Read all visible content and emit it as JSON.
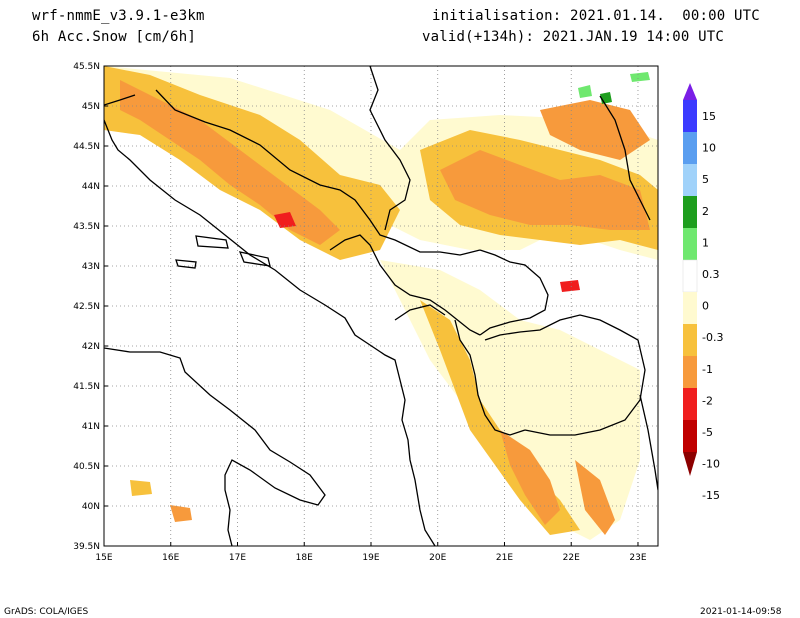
{
  "header": {
    "model": "wrf-nmmE_v3.9.1-e3km",
    "field": "6h Acc.Snow [cm/6h]",
    "init": "initialisation: 2021.01.14.  00:00 UTC",
    "valid": "valid(+134h): 2021.JAN.19 14:00 UTC"
  },
  "axes": {
    "lat_labels": [
      "45.5N",
      "45N",
      "44.5N",
      "44N",
      "43.5N",
      "43N",
      "42.5N",
      "42N",
      "41.5N",
      "41N",
      "40.5N",
      "40N",
      "39.5N"
    ],
    "lat_values": [
      45.5,
      45,
      44.5,
      44,
      43.5,
      43,
      42.5,
      42,
      41.5,
      41,
      40.5,
      40,
      39.5
    ],
    "lon_labels": [
      "15E",
      "16E",
      "17E",
      "18E",
      "19E",
      "20E",
      "21E",
      "22E",
      "23E"
    ],
    "lon_values": [
      15,
      16,
      17,
      18,
      19,
      20,
      21,
      22,
      23
    ],
    "lat_range": [
      39.5,
      45.5
    ],
    "lon_range": [
      15,
      23.3
    ],
    "grid": true
  },
  "colorbar": {
    "labels": [
      "15",
      "10",
      "5",
      "2",
      "1",
      "0.3",
      "0",
      "-0.3",
      "-1",
      "-2",
      "-5",
      "-10",
      "-15"
    ],
    "colors": [
      "#7a1ee6",
      "#3b3bff",
      "#5a9ef0",
      "#a0d2fa",
      "#1e9e1e",
      "#6fe86f",
      "#ffffff",
      "#fffad0",
      "#f7c13c",
      "#f79a3c",
      "#f01e1e",
      "#c00000",
      "#8c0000"
    ]
  },
  "footer": {
    "credit": "GrADS: COLA/IGES",
    "timestamp": "2021-01-14-09:58"
  }
}
